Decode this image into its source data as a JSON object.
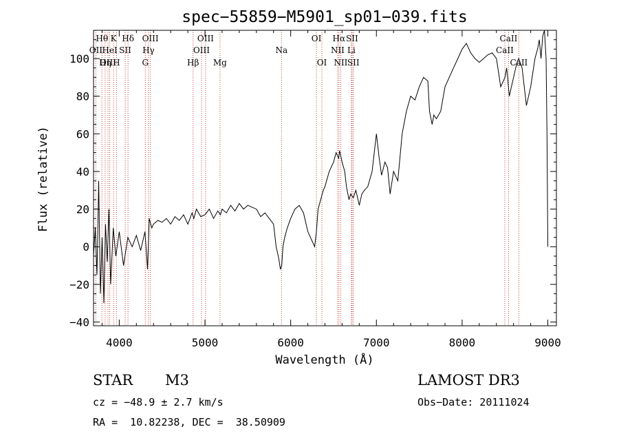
{
  "chart_data": {
    "type": "line",
    "title": "spec−55859−M5901_sp01−039.fits",
    "xlabel": "Wavelength (Å)",
    "ylabel": "Flux (relative)",
    "xlim": [
      3700,
      9100
    ],
    "ylim": [
      -42,
      115
    ],
    "xticks": [
      4000,
      5000,
      6000,
      7000,
      8000,
      9000
    ],
    "yticks": [
      -40,
      -20,
      0,
      20,
      40,
      60,
      80,
      100
    ],
    "grid": false,
    "series": [
      {
        "name": "spectrum",
        "color": "#000000",
        "x": [
          3700,
          3720,
          3740,
          3760,
          3780,
          3800,
          3820,
          3840,
          3860,
          3880,
          3900,
          3930,
          3960,
          4000,
          4050,
          4100,
          4150,
          4200,
          4250,
          4300,
          4330,
          4350,
          4380,
          4400,
          4450,
          4500,
          4550,
          4600,
          4650,
          4700,
          4750,
          4800,
          4850,
          4870,
          4900,
          4950,
          5000,
          5050,
          5100,
          5150,
          5180,
          5200,
          5250,
          5300,
          5350,
          5400,
          5450,
          5500,
          5550,
          5600,
          5650,
          5700,
          5750,
          5800,
          5830,
          5860,
          5880,
          5895,
          5910,
          5930,
          5960,
          6000,
          6050,
          6100,
          6150,
          6200,
          6250,
          6280,
          6300,
          6320,
          6350,
          6380,
          6400,
          6450,
          6500,
          6530,
          6560,
          6570,
          6600,
          6630,
          6650,
          6680,
          6700,
          6730,
          6760,
          6800,
          6830,
          6860,
          6900,
          6950,
          7000,
          7030,
          7060,
          7100,
          7130,
          7160,
          7200,
          7250,
          7300,
          7350,
          7400,
          7450,
          7500,
          7550,
          7600,
          7620,
          7650,
          7670,
          7700,
          7750,
          7800,
          7850,
          7900,
          7950,
          8000,
          8050,
          8100,
          8150,
          8200,
          8250,
          8300,
          8350,
          8400,
          8450,
          8500,
          8520,
          8550,
          8600,
          8640,
          8660,
          8700,
          8750,
          8800,
          8850,
          8880,
          8900,
          8920,
          8940,
          8960,
          8980,
          8990,
          8995,
          9000
        ],
        "y": [
          -5,
          10,
          -15,
          35,
          -25,
          5,
          -30,
          12,
          -8,
          20,
          -20,
          10,
          -5,
          8,
          -10,
          5,
          0,
          6,
          -2,
          8,
          -12,
          15,
          10,
          12,
          14,
          13,
          15,
          12,
          16,
          14,
          17,
          12,
          18,
          15,
          20,
          16,
          17,
          20,
          15,
          19,
          17,
          20,
          18,
          22,
          19,
          23,
          20,
          22,
          21,
          20,
          16,
          18,
          15,
          12,
          0,
          -6,
          -12,
          -10,
          0,
          5,
          10,
          15,
          20,
          22,
          18,
          8,
          3,
          0,
          8,
          20,
          25,
          30,
          32,
          40,
          45,
          50,
          47,
          51,
          45,
          40,
          32,
          25,
          28,
          26,
          30,
          22,
          28,
          30,
          32,
          40,
          60,
          48,
          38,
          45,
          42,
          28,
          40,
          35,
          60,
          72,
          80,
          78,
          85,
          90,
          88,
          72,
          65,
          70,
          68,
          72,
          85,
          90,
          95,
          100,
          105,
          108,
          103,
          100,
          98,
          100,
          102,
          103,
          100,
          85,
          90,
          95,
          80,
          90,
          98,
          100,
          95,
          75,
          85,
          100,
          105,
          110,
          100,
          112,
          115,
          100,
          60,
          30,
          0
        ]
      }
    ],
    "lines": [
      {
        "label": "Hθ",
        "x": 3798,
        "row": 0
      },
      {
        "label": "OII",
        "x": 3727,
        "row": 1
      },
      {
        "label": "OIII",
        "x": 3869,
        "row": 2
      },
      {
        "label": "K",
        "x": 3934,
        "row": 0
      },
      {
        "label": "HeI",
        "x": 3889,
        "row": 1
      },
      {
        "label": "Hη",
        "x": 3835,
        "row": 2
      },
      {
        "label": "SII",
        "x": 4069,
        "row": 1
      },
      {
        "label": "H",
        "x": 3968,
        "row": 2
      },
      {
        "label": "Hδ",
        "x": 4102,
        "row": 0
      },
      {
        "label": "OIII",
        "x": 4363,
        "row": 0
      },
      {
        "label": "Hγ",
        "x": 4341,
        "row": 1
      },
      {
        "label": "G",
        "x": 4304,
        "row": 2
      },
      {
        "label": "Hβ",
        "x": 4861,
        "row": 2
      },
      {
        "label": "OIII",
        "x": 5007,
        "row": 0
      },
      {
        "label": "OIII",
        "x": 4959,
        "row": 1
      },
      {
        "label": "Mg",
        "x": 5175,
        "row": 2
      },
      {
        "label": "Na",
        "x": 5893,
        "row": 1
      },
      {
        "label": "OI",
        "x": 6300,
        "row": 0
      },
      {
        "label": "OI",
        "x": 6364,
        "row": 2
      },
      {
        "label": "Hα",
        "x": 6563,
        "row": 0
      },
      {
        "label": "SII",
        "x": 6716,
        "row": 0
      },
      {
        "label": "NII",
        "x": 6548,
        "row": 1
      },
      {
        "label": "Li",
        "x": 6708,
        "row": 1
      },
      {
        "label": "NII",
        "x": 6584,
        "row": 2
      },
      {
        "label": "SII",
        "x": 6731,
        "row": 2
      },
      {
        "label": "CaII",
        "x": 8542,
        "row": 0
      },
      {
        "label": "CaII",
        "x": 8498,
        "row": 1
      },
      {
        "label": "CaII",
        "x": 8662,
        "row": 2
      }
    ]
  },
  "info": {
    "object_class": "STAR",
    "subclass": "M3",
    "survey": "LAMOST DR3",
    "velocity": "cz = −48.9 ± 2.7 km/s",
    "obs_date": "Obs−Date: 20111024",
    "coords": "RA =  10.82238, DEC =  38.50909"
  },
  "colors": {
    "line_marker": "#c0392b",
    "ink": "#000000"
  }
}
